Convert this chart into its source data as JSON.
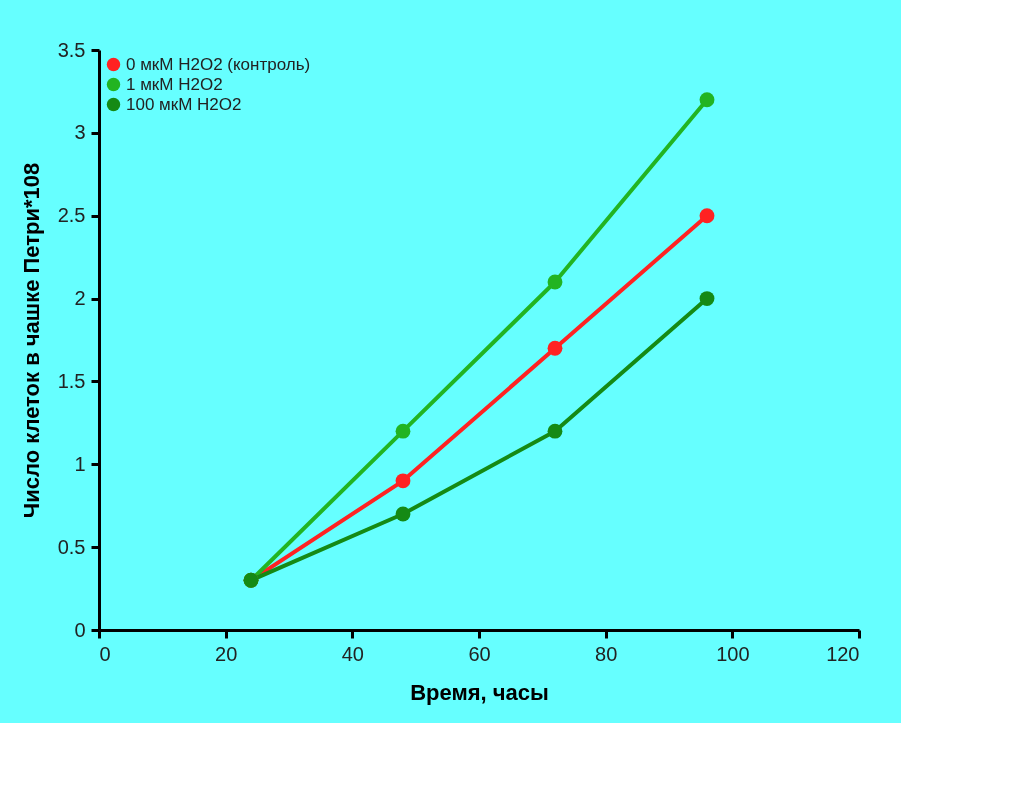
{
  "chart_data": {
    "type": "line",
    "xlabel": "Время, часы",
    "ylabel": "Число клеток в чашке Петри*108",
    "x": [
      24,
      48,
      72,
      96
    ],
    "series": [
      {
        "name": "0 мкМ H2O2 (контроль)",
        "color": "#ff2222",
        "values": [
          0.3,
          0.9,
          1.7,
          2.5
        ]
      },
      {
        "name": "1 мкМ H2O2",
        "color": "#22b422",
        "values": [
          0.3,
          1.2,
          2.1,
          3.2
        ]
      },
      {
        "name": "100 мкМ H2O2",
        "color": "#158a15",
        "values": [
          0.3,
          0.7,
          1.2,
          2.0
        ]
      }
    ],
    "xlim": [
      0,
      120
    ],
    "xticks": [
      0,
      20,
      40,
      60,
      80,
      100,
      120
    ],
    "ylim": [
      0,
      3.5
    ],
    "yticks": [
      0,
      0.5,
      1,
      1.5,
      2,
      2.5,
      3,
      3.5
    ],
    "grid": false,
    "legend": "top left",
    "marker": "circle",
    "line_style": "solid"
  }
}
